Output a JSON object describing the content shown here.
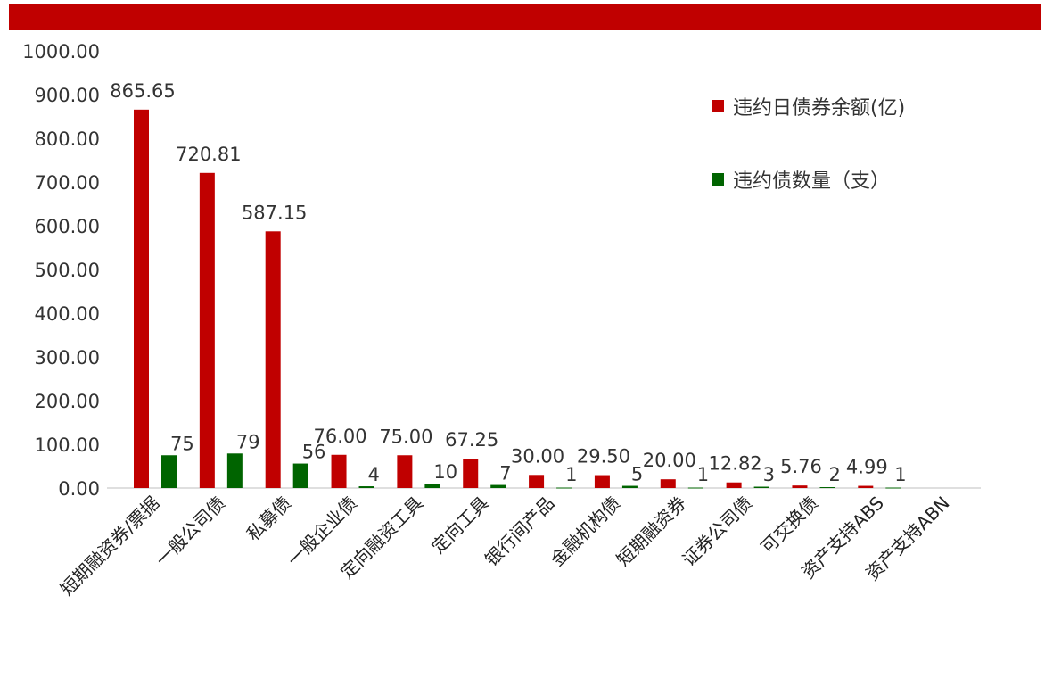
{
  "chart_data": {
    "type": "bar",
    "title": "",
    "categories": [
      "短期融资券/票据",
      "一般公司债",
      "私募债",
      "一般企业债",
      "定向融资工具",
      "定向工具",
      "银行间产品",
      "金融机构债",
      "短期融资券",
      "证券公司债",
      "可交换债",
      "资产支持ABS",
      "资产支持ABN"
    ],
    "series": [
      {
        "name": "违约日债券余额(亿)",
        "values": [
          865.65,
          720.81,
          587.15,
          76.0,
          75.0,
          67.25,
          30.0,
          29.5,
          20.0,
          12.82,
          5.76,
          4.99,
          0
        ],
        "value_labels": [
          "865.65",
          "720.81",
          "587.15",
          "76.00",
          "75.00",
          "67.25",
          "30.00",
          "29.50",
          "20.00",
          "12.82",
          "5.76",
          "4.99",
          ""
        ],
        "color": "#c00000"
      },
      {
        "name": "违约债数量（支）",
        "values": [
          75,
          79,
          56,
          4,
          10,
          7,
          1,
          5,
          1,
          3,
          2,
          1,
          0
        ],
        "value_labels": [
          "75",
          "79",
          "56",
          "4",
          "10",
          "7",
          "1",
          "5",
          "1",
          "3",
          "2",
          "1",
          ""
        ],
        "color": "#006400"
      }
    ],
    "ylim": [
      0,
      1000
    ],
    "yticks": [
      "1000.00",
      "900.00",
      "800.00",
      "700.00",
      "600.00",
      "500.00",
      "400.00",
      "300.00",
      "200.00",
      "100.00",
      "0.00"
    ],
    "grid": false,
    "legend_position": "right"
  },
  "colors": {
    "title_bar": "#c00000",
    "bar1": "#c00000",
    "bar2": "#006400"
  }
}
